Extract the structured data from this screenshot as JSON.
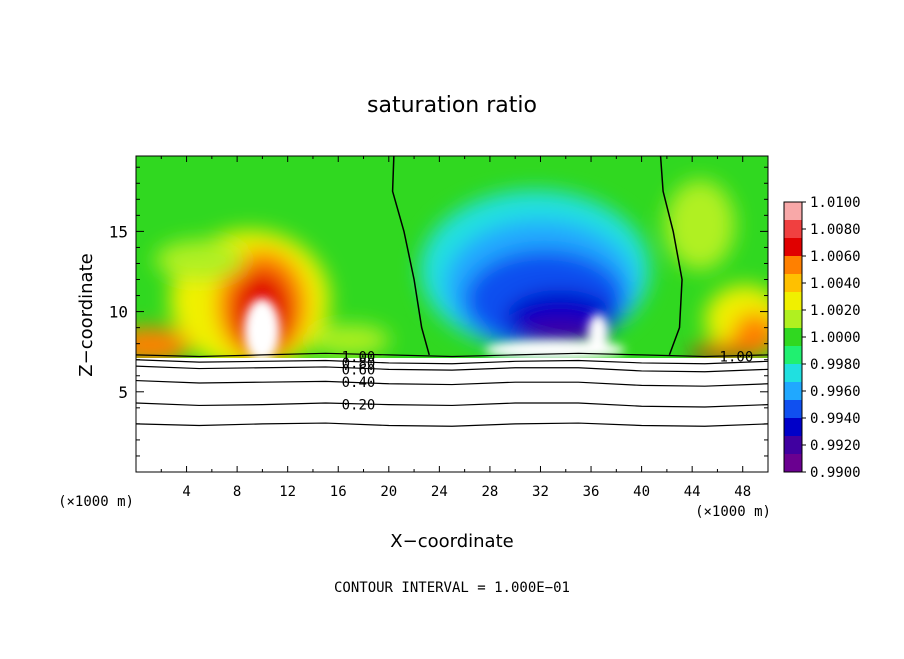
{
  "chart_data": {
    "type": "heatmap",
    "title": "saturation ratio",
    "xlabel": "X−coordinate",
    "ylabel": "Z−coordinate",
    "x_unit_left": "(×1000 m)",
    "x_unit_right": "(×1000 m)",
    "footer": "CONTOUR INTERVAL = 1.000E−01",
    "xlim": [
      0,
      50
    ],
    "ylim": [
      0,
      19.7
    ],
    "x_ticks": [
      4,
      8,
      12,
      16,
      20,
      24,
      28,
      32,
      36,
      40,
      44,
      48
    ],
    "x_tick_labels": [
      "4",
      "8",
      "12",
      "16",
      "20",
      "24",
      "28",
      "32",
      "36",
      "40",
      "44",
      "48"
    ],
    "y_ticks": [
      5,
      10,
      15
    ],
    "y_tick_labels": [
      "5",
      "10",
      "15"
    ],
    "colorbar": {
      "min": 0.99,
      "max": 1.01,
      "labels": [
        "1.0100",
        "1.0080",
        "1.0060",
        "1.0040",
        "1.0020",
        "1.0000",
        "0.9980",
        "0.9960",
        "0.9940",
        "0.9920",
        "0.9900"
      ],
      "colors": [
        "#f8a8a8",
        "#f04040",
        "#e00000",
        "#ff8000",
        "#ffc000",
        "#f0f000",
        "#b0f020",
        "#30d820",
        "#20f070",
        "#20e0e0",
        "#20a8ff",
        "#1050f0",
        "#0000c8",
        "#4000a0",
        "#6a0090"
      ]
    },
    "contours": [
      {
        "label": "1.00",
        "label_x": 17.6,
        "label_y": 7.2,
        "points": [
          [
            0,
            7.3
          ],
          [
            10,
            7.3
          ],
          [
            20,
            7.3
          ],
          [
            30,
            7.3
          ],
          [
            40,
            7.3
          ],
          [
            50,
            7.3
          ]
        ]
      },
      {
        "label": "1.00",
        "label_x": 47.5,
        "label_y": 7.2
      },
      {
        "label": "0.80",
        "label_x": 17.6,
        "label_y": 6.8,
        "points": [
          [
            0,
            7.0
          ],
          [
            10,
            6.9
          ],
          [
            20,
            6.8
          ],
          [
            30,
            6.9
          ],
          [
            40,
            6.8
          ],
          [
            50,
            6.9
          ]
        ]
      },
      {
        "label": "0.60",
        "label_x": 17.6,
        "label_y": 6.4,
        "points": [
          [
            0,
            6.6
          ],
          [
            10,
            6.5
          ],
          [
            20,
            6.4
          ],
          [
            30,
            6.5
          ],
          [
            40,
            6.3
          ],
          [
            50,
            6.4
          ]
        ]
      },
      {
        "label": "0.40",
        "label_x": 17.6,
        "label_y": 5.6,
        "points": [
          [
            0,
            5.7
          ],
          [
            10,
            5.6
          ],
          [
            20,
            5.5
          ],
          [
            30,
            5.6
          ],
          [
            40,
            5.4
          ],
          [
            50,
            5.5
          ]
        ]
      },
      {
        "label": "0.20",
        "label_x": 17.6,
        "label_y": 4.2,
        "points": [
          [
            0,
            4.3
          ],
          [
            10,
            4.2
          ],
          [
            20,
            4.2
          ],
          [
            30,
            4.3
          ],
          [
            40,
            4.1
          ],
          [
            50,
            4.2
          ]
        ]
      },
      {
        "label": "",
        "points": [
          [
            0,
            3.0
          ],
          [
            10,
            3.0
          ],
          [
            20,
            2.9
          ],
          [
            30,
            3.0
          ],
          [
            40,
            2.9
          ],
          [
            50,
            3.0
          ]
        ]
      }
    ],
    "contour_1_vertical": [
      {
        "label": "1.00",
        "points": [
          [
            20.4,
            19.7
          ],
          [
            20.3,
            17.5
          ],
          [
            21.2,
            15.0
          ],
          [
            22.0,
            12.0
          ],
          [
            22.6,
            9.0
          ],
          [
            23.2,
            7.3
          ]
        ]
      },
      {
        "label": "1.00",
        "points": [
          [
            41.5,
            19.7
          ],
          [
            41.7,
            17.5
          ],
          [
            42.5,
            15.0
          ],
          [
            43.2,
            12.0
          ],
          [
            43.0,
            9.0
          ],
          [
            42.2,
            7.3
          ]
        ]
      }
    ]
  }
}
